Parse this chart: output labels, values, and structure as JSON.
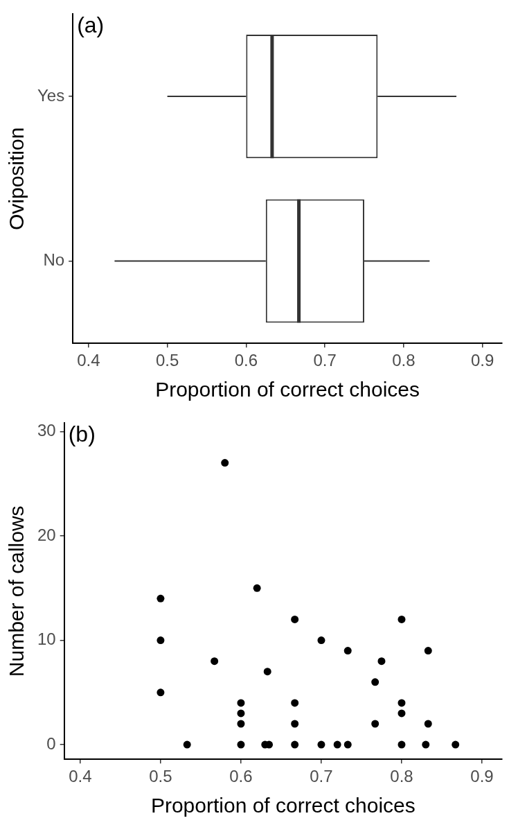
{
  "chart_data": [
    {
      "type": "box",
      "title": "(a)",
      "orientation": "horizontal",
      "xlabel": "Proportion of correct choices",
      "ylabel": "Oviposition",
      "categories": [
        "Yes",
        "No"
      ],
      "series": [
        {
          "color": "#333333",
          "boxes": [
            {
              "low": 0.5,
              "q1": 0.6,
              "median": 0.633,
              "q3": 0.767,
              "high": 0.867
            },
            {
              "low": 0.433,
              "q1": 0.625,
              "median": 0.667,
              "q3": 0.75,
              "high": 0.833
            }
          ]
        }
      ],
      "xlim": [
        0.38,
        0.925
      ],
      "xticks": [
        0.4,
        0.5,
        0.6,
        0.7,
        0.8,
        0.9
      ]
    },
    {
      "type": "scatter",
      "title": "(b)",
      "xlabel": "Proportion of correct choices",
      "ylabel": "Number of callows",
      "marker": "circle",
      "x": [
        0.5,
        0.5,
        0.5,
        0.533,
        0.567,
        0.58,
        0.6,
        0.6,
        0.6,
        0.6,
        0.62,
        0.63,
        0.635,
        0.633,
        0.667,
        0.667,
        0.667,
        0.667,
        0.7,
        0.7,
        0.72,
        0.733,
        0.733,
        0.767,
        0.767,
        0.775,
        0.8,
        0.8,
        0.8,
        0.8,
        0.83,
        0.833,
        0.833,
        0.867
      ],
      "series": [
        {
          "color": "#000000",
          "values": [
            14,
            10,
            5,
            0,
            8,
            27,
            4,
            3,
            2,
            0,
            15,
            0,
            0,
            7,
            12,
            4,
            2,
            0,
            10,
            0,
            0,
            0,
            9,
            6,
            2,
            8,
            12,
            4,
            3,
            0,
            0,
            9,
            2,
            0
          ]
        }
      ],
      "xlim": [
        0.38,
        0.925
      ],
      "xticks": [
        0.4,
        0.5,
        0.6,
        0.7,
        0.8,
        0.9
      ],
      "ylim": [
        -1.4,
        30.8
      ],
      "yticks": [
        0,
        10,
        20,
        30
      ]
    }
  ]
}
